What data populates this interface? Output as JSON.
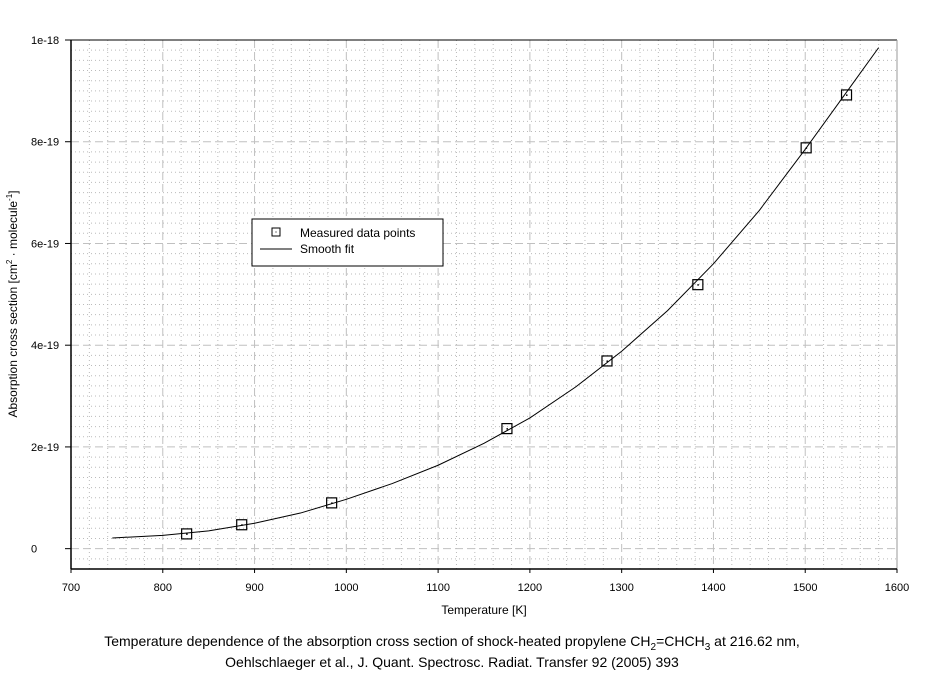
{
  "chart_data": {
    "type": "scatter",
    "title": "",
    "xlabel": "Temperature [K]",
    "ylabel": "Absorption cross section [cm² · molecule⁻¹]",
    "ylabel_parts": {
      "main": "Absorption cross section [cm",
      "sup1": "2",
      "mid": " · molecule",
      "sup2": "-1",
      "end": "]"
    },
    "xlim": [
      700,
      1600
    ],
    "ylim": [
      -4e-20,
      1e-18
    ],
    "xticks": [
      700,
      800,
      900,
      1000,
      1100,
      1200,
      1300,
      1400,
      1500,
      1600
    ],
    "xtick_labels": [
      "700",
      "800",
      "900",
      "1000",
      "1100",
      "1200",
      "1300",
      "1400",
      "1500",
      "1600"
    ],
    "yticks": [
      0,
      2e-19,
      4e-19,
      6e-19,
      8e-19,
      1e-18
    ],
    "ytick_labels": [
      "0",
      "2e-19",
      "4e-19",
      "6e-19",
      "8e-19",
      "1e-18"
    ],
    "grid": true,
    "legend_position": "upper-left-center",
    "series": [
      {
        "name": "Measured data points",
        "kind": "markers",
        "x": [
          826,
          886,
          984,
          1175,
          1284,
          1383,
          1501,
          1545
        ],
        "y": [
          2.9e-20,
          4.7e-20,
          9e-20,
          2.36e-19,
          3.69e-19,
          5.19e-19,
          7.88e-19,
          8.92e-19
        ]
      },
      {
        "name": "Smooth fit",
        "kind": "line",
        "x": [
          745,
          800,
          850,
          900,
          950,
          1000,
          1050,
          1100,
          1150,
          1200,
          1250,
          1300,
          1350,
          1400,
          1450,
          1500,
          1550,
          1580
        ],
        "y": [
          2.1e-20,
          2.6e-20,
          3.5e-20,
          5e-20,
          7e-20,
          9.7e-20,
          1.28e-19,
          1.64e-19,
          2.07e-19,
          2.57e-19,
          3.18e-19,
          3.88e-19,
          4.68e-19,
          5.6e-19,
          6.65e-19,
          7.85e-19,
          9.1e-19,
          9.85e-19
        ]
      }
    ],
    "caption": {
      "line1_pre": "Temperature dependence of the absorption cross section of shock-heated propylene CH",
      "sub1": "2",
      "mid": "=CHCH",
      "sub2": "3",
      "line1_post": " at 216.62 nm,",
      "line2": "Oehlschlaeger et al., J. Quant. Spectrosc. Radiat. Transfer 92 (2005) 393"
    }
  }
}
